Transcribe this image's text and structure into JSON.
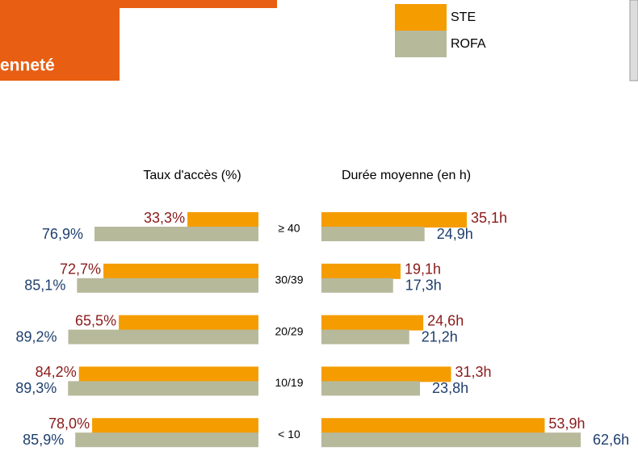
{
  "chart_data": [
    {
      "type": "bar",
      "title": "enneté",
      "subtitle": "Taux d'accès (%)",
      "direction": "left",
      "categories": [
        "≥ 40",
        "30/39",
        "20/29",
        "10/19",
        "< 10"
      ],
      "xlim": [
        0,
        100
      ],
      "series": [
        {
          "name": "STE",
          "color": "#f59c00",
          "label_color": "#8b1a1a",
          "values": [
            33.3,
            72.7,
            65.5,
            84.2,
            78.0
          ],
          "value_labels": [
            "33,3%",
            "72,7%",
            "65,5%",
            "84,2%",
            "78,0%"
          ]
        },
        {
          "name": "ROFA",
          "color": "#b7b99b",
          "label_color": "#1f3f6e",
          "values": [
            76.9,
            85.1,
            89.2,
            89.3,
            85.9
          ],
          "value_labels": [
            "76,9%",
            "85,1%",
            "89,2%",
            "89,3%",
            "85,9%"
          ]
        }
      ]
    },
    {
      "type": "bar",
      "subtitle": "Durée moyenne (en h)",
      "direction": "right",
      "xlim": [
        0,
        70
      ],
      "series": [
        {
          "color": "#f59c00",
          "label_color": "#8b1a1a",
          "values": [
            35.1,
            19.1,
            24.6,
            31.3,
            53.9
          ],
          "value_labels": [
            "35,1h",
            "19,1h",
            "24,6h",
            "31,3h",
            "53,9h"
          ]
        },
        {
          "color": "#b7b99b",
          "label_color": "#1f3f6e",
          "values": [
            24.9,
            17.3,
            21.2,
            23.8,
            62.6
          ],
          "value_labels": [
            "24,9h",
            "17,3h",
            "21,2h",
            "23,8h",
            "62,6h"
          ]
        }
      ]
    }
  ]
}
